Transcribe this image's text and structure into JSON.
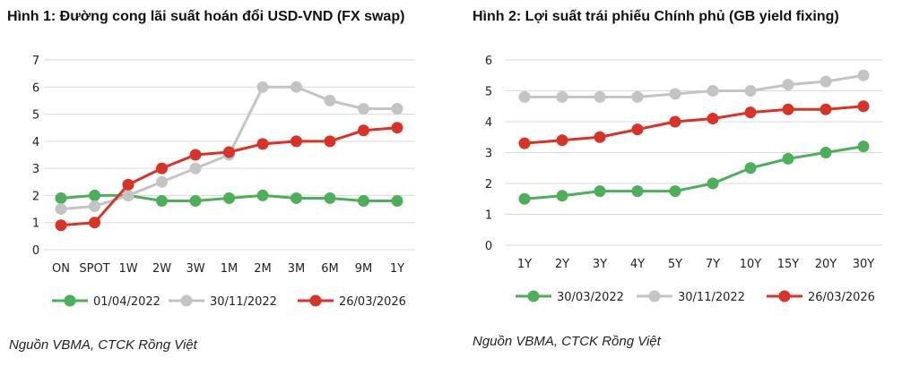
{
  "chart_data": [
    {
      "type": "line",
      "title": "Hình 1: Đường cong lãi suất hoán đổi USD-VND (FX swap)",
      "source": "Nguồn VBMA, CTCK Rồng Việt",
      "categories": [
        "ON",
        "SPOT",
        "1W",
        "2W",
        "3W",
        "1M",
        "2M",
        "3M",
        "6M",
        "9M",
        "1Y"
      ],
      "ylim": [
        0,
        7
      ],
      "yticks": [
        "0",
        "1",
        "2",
        "3",
        "4",
        "5",
        "6",
        "7"
      ],
      "grid": true,
      "legend": "bottom",
      "series": [
        {
          "name": "01/04/2022",
          "color": "#4caf5a",
          "values": [
            1.9,
            2.0,
            2.0,
            1.8,
            1.8,
            1.9,
            2.0,
            1.9,
            1.9,
            1.8,
            1.8
          ]
        },
        {
          "name": "30/11/2022",
          "color": "#c4c4c4",
          "values": [
            1.5,
            1.6,
            2.0,
            2.5,
            3.0,
            3.5,
            6.0,
            6.0,
            5.5,
            5.2,
            5.2
          ]
        },
        {
          "name": "26/03/2026",
          "color": "#d93226",
          "values": [
            0.9,
            1.0,
            2.4,
            3.0,
            3.5,
            3.6,
            3.9,
            4.0,
            4.0,
            4.4,
            4.5
          ]
        }
      ]
    },
    {
      "type": "line",
      "title": "Hình 2: Lợi suất trái phiếu Chính phủ (GB yield fixing)",
      "source": "Nguồn VBMA, CTCK Rồng Việt",
      "categories": [
        "1Y",
        "2Y",
        "3Y",
        "4Y",
        "5Y",
        "7Y",
        "10Y",
        "15Y",
        "20Y",
        "30Y"
      ],
      "ylim": [
        0,
        6
      ],
      "yticks": [
        "0",
        "1",
        "2",
        "3",
        "4",
        "5",
        "6"
      ],
      "grid": true,
      "legend": "bottom",
      "series": [
        {
          "name": "30/03/2022",
          "color": "#4caf5a",
          "values": [
            1.5,
            1.6,
            1.75,
            1.75,
            1.75,
            2.0,
            2.5,
            2.8,
            3.0,
            3.2
          ]
        },
        {
          "name": "30/11/2022",
          "color": "#c4c4c4",
          "values": [
            4.8,
            4.8,
            4.8,
            4.8,
            4.9,
            5.0,
            5.0,
            5.2,
            5.3,
            5.5
          ]
        },
        {
          "name": "26/03/2026",
          "color": "#d93226",
          "values": [
            3.3,
            3.4,
            3.5,
            3.75,
            4.0,
            4.1,
            4.3,
            4.4,
            4.4,
            4.5
          ]
        }
      ]
    }
  ]
}
